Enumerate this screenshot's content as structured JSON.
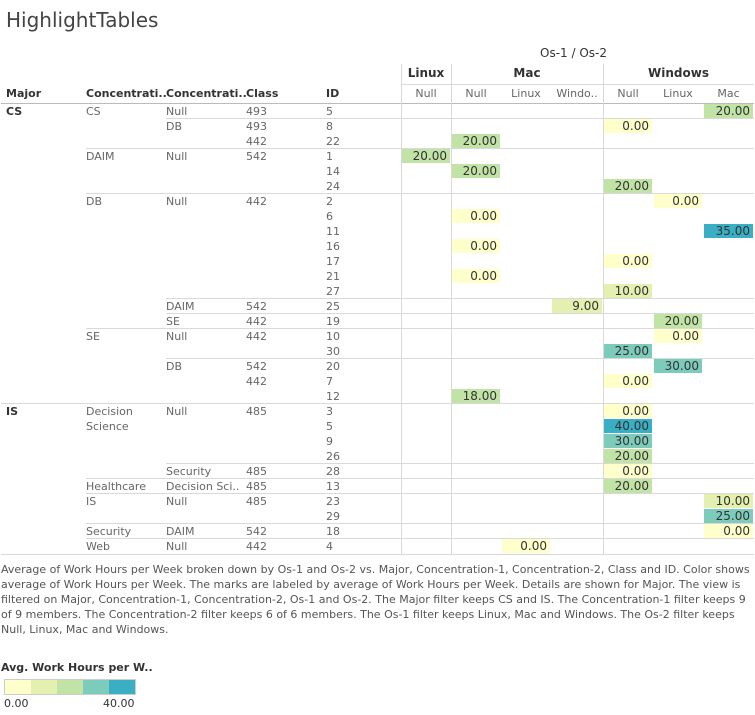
{
  "title": "HighlightTables",
  "header": {
    "top_label": "Os-1 / Os-2",
    "row_headers": [
      "Major",
      "Concentrati..",
      "Concentrati..",
      "Class",
      "ID"
    ],
    "os1": [
      "Linux",
      "Mac",
      "Windows"
    ],
    "os2": [
      "Null",
      "Null",
      "Linux",
      "Windo..",
      "Null",
      "Linux",
      "Mac"
    ]
  },
  "rows": [
    {
      "major": "CS",
      "c1": "CS",
      "c2": "Null",
      "class": "493",
      "id": "5"
    },
    {
      "major": "",
      "c1": "",
      "c2": "DB",
      "class": "493",
      "id": "8"
    },
    {
      "major": "",
      "c1": "",
      "c2": "",
      "class": "442",
      "id": "22"
    },
    {
      "major": "",
      "c1": "DAIM",
      "c2": "Null",
      "class": "542",
      "id": "1"
    },
    {
      "major": "",
      "c1": "",
      "c2": "",
      "class": "",
      "id": "14"
    },
    {
      "major": "",
      "c1": "",
      "c2": "",
      "class": "",
      "id": "24"
    },
    {
      "major": "",
      "c1": "DB",
      "c2": "Null",
      "class": "442",
      "id": "2"
    },
    {
      "major": "",
      "c1": "",
      "c2": "",
      "class": "",
      "id": "6"
    },
    {
      "major": "",
      "c1": "",
      "c2": "",
      "class": "",
      "id": "11"
    },
    {
      "major": "",
      "c1": "",
      "c2": "",
      "class": "",
      "id": "16"
    },
    {
      "major": "",
      "c1": "",
      "c2": "",
      "class": "",
      "id": "17"
    },
    {
      "major": "",
      "c1": "",
      "c2": "",
      "class": "",
      "id": "21"
    },
    {
      "major": "",
      "c1": "",
      "c2": "",
      "class": "",
      "id": "27"
    },
    {
      "major": "",
      "c1": "",
      "c2": "DAIM",
      "class": "542",
      "id": "25"
    },
    {
      "major": "",
      "c1": "",
      "c2": "SE",
      "class": "442",
      "id": "19"
    },
    {
      "major": "",
      "c1": "SE",
      "c2": "Null",
      "class": "442",
      "id": "10"
    },
    {
      "major": "",
      "c1": "",
      "c2": "",
      "class": "",
      "id": "30"
    },
    {
      "major": "",
      "c1": "",
      "c2": "DB",
      "class": "542",
      "id": "20"
    },
    {
      "major": "",
      "c1": "",
      "c2": "",
      "class": "442",
      "id": "7"
    },
    {
      "major": "",
      "c1": "",
      "c2": "",
      "class": "",
      "id": "12"
    },
    {
      "major": "IS",
      "c1": "Decision",
      "c2": "Null",
      "class": "485",
      "id": "3"
    },
    {
      "major": "",
      "c1": "Science",
      "c2": "",
      "class": "",
      "id": "5"
    },
    {
      "major": "",
      "c1": "",
      "c2": "",
      "class": "",
      "id": "9"
    },
    {
      "major": "",
      "c1": "",
      "c2": "",
      "class": "",
      "id": "26"
    },
    {
      "major": "",
      "c1": "",
      "c2": "Security",
      "class": "485",
      "id": "28"
    },
    {
      "major": "",
      "c1": "Healthcare",
      "c2": "Decision Sci..",
      "class": "485",
      "id": "13"
    },
    {
      "major": "",
      "c1": "IS",
      "c2": "Null",
      "class": "485",
      "id": "23"
    },
    {
      "major": "",
      "c1": "",
      "c2": "",
      "class": "",
      "id": "29"
    },
    {
      "major": "",
      "c1": "Security",
      "c2": "DAIM",
      "class": "542",
      "id": "18"
    },
    {
      "major": "",
      "c1": "Web",
      "c2": "Null",
      "class": "442",
      "id": "4"
    }
  ],
  "cells": [
    {
      "row": 0,
      "col": 6,
      "value": 20,
      "label": "20.00"
    },
    {
      "row": 1,
      "col": 4,
      "value": 0,
      "label": "0.00"
    },
    {
      "row": 2,
      "col": 1,
      "value": 20,
      "label": "20.00"
    },
    {
      "row": 3,
      "col": 0,
      "value": 20,
      "label": "20.00"
    },
    {
      "row": 4,
      "col": 1,
      "value": 20,
      "label": "20.00"
    },
    {
      "row": 5,
      "col": 4,
      "value": 20,
      "label": "20.00"
    },
    {
      "row": 6,
      "col": 5,
      "value": 0,
      "label": "0.00"
    },
    {
      "row": 7,
      "col": 1,
      "value": 0,
      "label": "0.00"
    },
    {
      "row": 8,
      "col": 6,
      "value": 35,
      "label": "35.00"
    },
    {
      "row": 9,
      "col": 1,
      "value": 0,
      "label": "0.00"
    },
    {
      "row": 10,
      "col": 4,
      "value": 0,
      "label": "0.00"
    },
    {
      "row": 11,
      "col": 1,
      "value": 0,
      "label": "0.00"
    },
    {
      "row": 12,
      "col": 4,
      "value": 10,
      "label": "10.00"
    },
    {
      "row": 13,
      "col": 3,
      "value": 9,
      "label": "9.00"
    },
    {
      "row": 14,
      "col": 5,
      "value": 20,
      "label": "20.00"
    },
    {
      "row": 15,
      "col": 5,
      "value": 0,
      "label": "0.00"
    },
    {
      "row": 16,
      "col": 4,
      "value": 25,
      "label": "25.00"
    },
    {
      "row": 17,
      "col": 5,
      "value": 30,
      "label": "30.00"
    },
    {
      "row": 18,
      "col": 4,
      "value": 0,
      "label": "0.00"
    },
    {
      "row": 19,
      "col": 1,
      "value": 18,
      "label": "18.00"
    },
    {
      "row": 20,
      "col": 4,
      "value": 0,
      "label": "0.00"
    },
    {
      "row": 21,
      "col": 4,
      "value": 40,
      "label": "40.00"
    },
    {
      "row": 22,
      "col": 4,
      "value": 30,
      "label": "30.00"
    },
    {
      "row": 23,
      "col": 4,
      "value": 20,
      "label": "20.00"
    },
    {
      "row": 24,
      "col": 4,
      "value": 0,
      "label": "0.00"
    },
    {
      "row": 25,
      "col": 4,
      "value": 20,
      "label": "20.00"
    },
    {
      "row": 26,
      "col": 6,
      "value": 10,
      "label": "10.00"
    },
    {
      "row": 27,
      "col": 6,
      "value": 25,
      "label": "25.00"
    },
    {
      "row": 28,
      "col": 6,
      "value": 0,
      "label": "0.00"
    },
    {
      "row": 29,
      "col": 2,
      "value": 0,
      "label": "0.00"
    }
  ],
  "caption": "Average of Work Hours per Week broken down by Os-1 and Os-2 vs. Major, Concentration-1, Concentration-2, Class and ID.  Color shows average of Work Hours per Week.  The marks are labeled by average of Work Hours per Week. Details are shown for Major. The view is filtered on Major, Concentration-1, Concentration-2, Os-1 and Os-2. The Major filter keeps CS and IS. The Concentration-1 filter keeps 9 of 9 members. The Concentration-2 filter keeps 6 of 6 members. The Os-1 filter keeps Linux, Mac and Windows. The Os-2 filter keeps Null, Linux, Mac and Windows.",
  "legend": {
    "title": "Avg. Work Hours per W..",
    "min_label": "0.00",
    "max_label": "40.00",
    "min": 0,
    "max": 40,
    "colors": [
      "#ffffcc",
      "#e3f0b0",
      "#c2e3a6",
      "#7dccbb",
      "#3aafc4"
    ]
  }
}
